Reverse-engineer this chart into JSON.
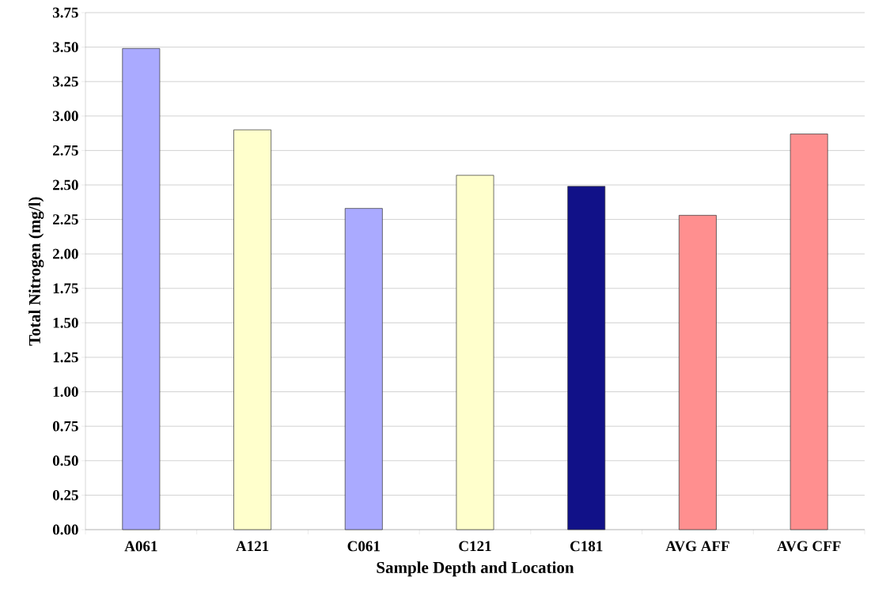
{
  "chart_data": {
    "type": "bar",
    "xlabel": "Sample Depth and Location",
    "ylabel": "Total Nitrogen (mg/l)",
    "categories": [
      "A061",
      "A121",
      "C061",
      "C121",
      "C181",
      "AVG AFF",
      "AVG CFF"
    ],
    "values": [
      3.49,
      2.9,
      2.33,
      2.57,
      2.49,
      2.28,
      2.87
    ],
    "colors": [
      "#aaaaff",
      "#ffffcc",
      "#aaaaff",
      "#ffffcc",
      "#111188",
      "#ff8f8f",
      "#ff8f8f"
    ],
    "ylim": [
      0,
      3.75
    ],
    "yticks": [
      {
        "value": 0,
        "label": "0.00"
      },
      {
        "value": 0.25,
        "label": "0.25"
      },
      {
        "value": 0.5,
        "label": "0.50"
      },
      {
        "value": 0.75,
        "label": "0.75"
      },
      {
        "value": 1,
        "label": "1.00"
      },
      {
        "value": 1.25,
        "label": "1.25"
      },
      {
        "value": 1.5,
        "label": "1.50"
      },
      {
        "value": 1.75,
        "label": "1.75"
      },
      {
        "value": 2,
        "label": "2.00"
      },
      {
        "value": 2.25,
        "label": "2.25"
      },
      {
        "value": 2.5,
        "label": "2.50"
      },
      {
        "value": 2.75,
        "label": "2.75"
      },
      {
        "value": 3,
        "label": "3.00"
      },
      {
        "value": 3.25,
        "label": "3.25"
      },
      {
        "value": 3.5,
        "label": "3.50"
      },
      {
        "value": 3.75,
        "label": "3.75"
      }
    ],
    "grid": "y"
  }
}
